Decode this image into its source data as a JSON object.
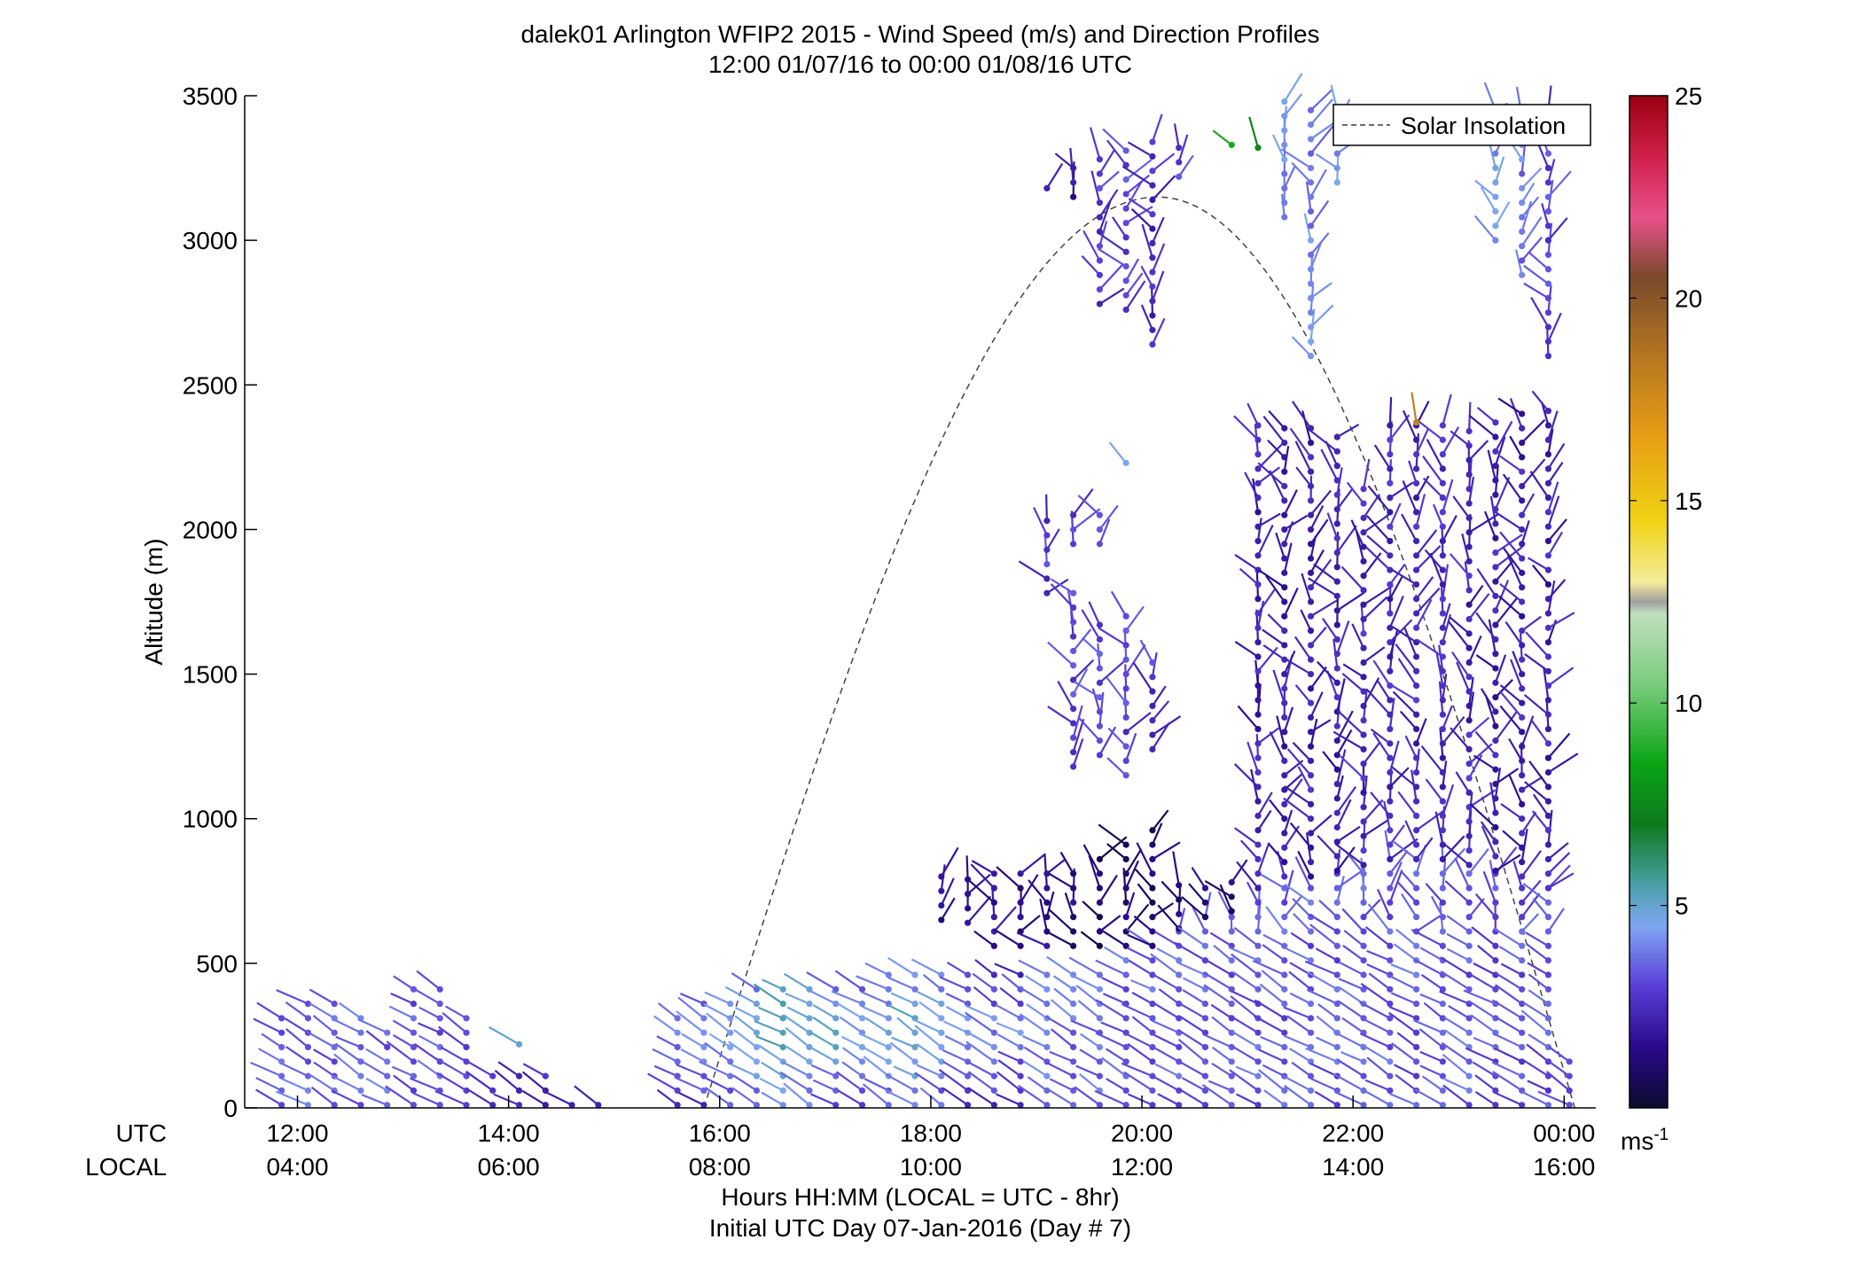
{
  "chart_data": {
    "type": "wind-barb-profile",
    "title": "dalek01 Arlington WFIP2 2015 - Wind Speed (m/s) and Direction Profiles",
    "subtitle": "12:00 01/07/16 to 00:00 01/08/16  UTC",
    "ylabel": "Altitude (m)",
    "xlabel": "Hours HH:MM  (LOCAL = UTC - 8hr)",
    "xlabel2": "Initial UTC Day 07-Jan-2016 (Day # 7)",
    "xlim_hours_utc": [
      11.5,
      24.3
    ],
    "ylim": [
      0,
      3500
    ],
    "y_ticks": [
      0,
      500,
      1000,
      1500,
      2000,
      2500,
      3000,
      3500
    ],
    "utc_row_label": "UTC",
    "local_row_label": "LOCAL",
    "x_ticks": [
      {
        "hour": 12,
        "utc": "12:00",
        "local": "04:00"
      },
      {
        "hour": 14,
        "utc": "14:00",
        "local": "06:00"
      },
      {
        "hour": 16,
        "utc": "16:00",
        "local": "08:00"
      },
      {
        "hour": 18,
        "utc": "18:00",
        "local": "10:00"
      },
      {
        "hour": 20,
        "utc": "20:00",
        "local": "12:00"
      },
      {
        "hour": 22,
        "utc": "22:00",
        "local": "14:00"
      },
      {
        "hour": 24,
        "utc": "00:00",
        "local": "16:00"
      }
    ],
    "colorbar": {
      "range": [
        0,
        25
      ],
      "ticks": [
        5,
        10,
        15,
        20,
        25
      ],
      "unit_label": "ms",
      "unit_exponent": "-1",
      "stops": [
        {
          "v": 0,
          "color": "#0b0b2e"
        },
        {
          "v": 1.5,
          "color": "#2a0a8a"
        },
        {
          "v": 3,
          "color": "#5a3dd8"
        },
        {
          "v": 4.5,
          "color": "#7fa6f2"
        },
        {
          "v": 5.5,
          "color": "#4aa0a8"
        },
        {
          "v": 7,
          "color": "#0e7a1e"
        },
        {
          "v": 8.5,
          "color": "#0aa514"
        },
        {
          "v": 10.5,
          "color": "#7ccc7e"
        },
        {
          "v": 12.2,
          "color": "#bfe0bd"
        },
        {
          "v": 12.5,
          "color": "#a0a0a0"
        },
        {
          "v": 13,
          "color": "#f4ec9a"
        },
        {
          "v": 14.5,
          "color": "#f0d214"
        },
        {
          "v": 16.5,
          "color": "#e8a014"
        },
        {
          "v": 18.5,
          "color": "#b87820"
        },
        {
          "v": 20.5,
          "color": "#7a4a2a"
        },
        {
          "v": 22,
          "color": "#e8508a"
        },
        {
          "v": 23.5,
          "color": "#d0204a"
        },
        {
          "v": 25,
          "color": "#9a0012"
        }
      ]
    },
    "legend": {
      "label": "Solar Insolation",
      "position": "top-right",
      "style": "dashed"
    },
    "solar_insolation_curve": {
      "start_hour": 15.85,
      "peak_hour": 20.15,
      "end_hour": 24.1,
      "peak_altitude": 3150
    },
    "profiles": [
      {
        "t": 11.85,
        "ranges": [
          [
            10,
            330,
            3.5
          ]
        ]
      },
      {
        "t": 12.1,
        "ranges": [
          [
            10,
            380,
            3.5
          ]
        ]
      },
      {
        "t": 12.35,
        "ranges": [
          [
            10,
            380,
            3.5
          ]
        ]
      },
      {
        "t": 12.6,
        "ranges": [
          [
            10,
            340,
            3.5
          ]
        ]
      },
      {
        "t": 12.85,
        "ranges": [
          [
            10,
            290,
            3.5
          ]
        ]
      },
      {
        "t": 13.1,
        "ranges": [
          [
            10,
            410,
            3.5
          ]
        ]
      },
      {
        "t": 13.35,
        "ranges": [
          [
            10,
            420,
            3.3
          ]
        ]
      },
      {
        "t": 13.6,
        "ranges": [
          [
            10,
            330,
            2.8
          ]
        ]
      },
      {
        "t": 13.85,
        "ranges": [
          [
            10,
            110,
            2.6
          ]
        ]
      },
      {
        "t": 14.1,
        "ranges": [
          [
            10,
            140,
            2.6
          ]
        ]
      },
      {
        "t": 14.35,
        "ranges": [
          [
            10,
            120,
            2.6
          ]
        ]
      },
      {
        "t": 14.6,
        "ranges": [
          [
            10,
            30,
            2.4
          ]
        ]
      },
      {
        "t": 14.85,
        "ranges": [
          [
            10,
            30,
            2.4
          ]
        ]
      },
      {
        "t": 15.6,
        "ranges": [
          [
            10,
            330,
            4.2
          ]
        ]
      },
      {
        "t": 15.85,
        "ranges": [
          [
            10,
            390,
            4.4
          ]
        ]
      },
      {
        "t": 16.1,
        "ranges": [
          [
            10,
            400,
            4.6
          ]
        ]
      },
      {
        "t": 16.35,
        "ranges": [
          [
            10,
            410,
            5.2
          ]
        ]
      },
      {
        "t": 16.6,
        "ranges": [
          [
            10,
            410,
            5.8
          ]
        ]
      },
      {
        "t": 16.85,
        "ranges": [
          [
            10,
            410,
            5.5
          ]
        ]
      },
      {
        "t": 17.1,
        "ranges": [
          [
            10,
            420,
            5.0
          ]
        ]
      },
      {
        "t": 17.35,
        "ranges": [
          [
            10,
            430,
            4.8
          ]
        ]
      },
      {
        "t": 17.6,
        "ranges": [
          [
            10,
            460,
            4.8
          ]
        ]
      },
      {
        "t": 17.85,
        "ranges": [
          [
            10,
            470,
            5.5
          ]
        ]
      },
      {
        "t": 18.1,
        "ranges": [
          [
            10,
            480,
            5.0
          ],
          [
            650,
            800,
            1.5
          ]
        ]
      },
      {
        "t": 18.35,
        "ranges": [
          [
            10,
            490,
            4.5
          ],
          [
            640,
            800,
            2.0
          ]
        ]
      },
      {
        "t": 18.6,
        "ranges": [
          [
            10,
            500,
            4.2
          ],
          [
            560,
            820,
            1.8
          ]
        ]
      },
      {
        "t": 18.85,
        "ranges": [
          [
            10,
            500,
            4.0
          ],
          [
            560,
            810,
            1.4
          ]
        ]
      },
      {
        "t": 19.1,
        "ranges": [
          [
            10,
            500,
            3.8
          ],
          [
            560,
            820,
            1.4
          ],
          [
            1780,
            2060,
            2.8
          ],
          [
            3180,
            3200,
            2.5
          ]
        ]
      },
      {
        "t": 19.35,
        "ranges": [
          [
            10,
            500,
            3.6
          ],
          [
            560,
            820,
            1.2
          ],
          [
            1180,
            1820,
            3.0
          ],
          [
            1950,
            2080,
            2.8
          ],
          [
            3150,
            3280,
            2.0
          ]
        ]
      },
      {
        "t": 19.6,
        "ranges": [
          [
            10,
            500,
            3.6
          ],
          [
            560,
            880,
            1.0
          ],
          [
            1220,
            1700,
            3.2
          ],
          [
            1950,
            2060,
            2.8
          ],
          [
            2780,
            3320,
            2.8
          ]
        ]
      },
      {
        "t": 19.85,
        "ranges": [
          [
            10,
            520,
            3.5
          ],
          [
            560,
            940,
            1.0
          ],
          [
            1150,
            1740,
            3.0
          ],
          [
            2760,
            3340,
            3.0
          ]
        ]
      },
      {
        "t": 20.1,
        "ranges": [
          [
            10,
            560,
            3.4
          ],
          [
            560,
            960,
            1.0
          ],
          [
            1240,
            1560,
            2.8
          ],
          [
            2640,
            3380,
            2.5
          ]
        ]
      },
      {
        "t": 20.35,
        "ranges": [
          [
            10,
            620,
            3.4
          ],
          [
            620,
            780,
            1.2
          ],
          [
            3220,
            3340,
            2.8
          ]
        ]
      },
      {
        "t": 20.6,
        "ranges": [
          [
            10,
            660,
            3.4
          ],
          [
            660,
            800,
            1.2
          ]
        ]
      },
      {
        "t": 20.85,
        "ranges": [
          [
            10,
            700,
            3.4
          ],
          [
            680,
            800,
            1.2
          ],
          [
            3330,
            3340,
            8.5
          ]
        ]
      },
      {
        "t": 21.1,
        "ranges": [
          [
            10,
            740,
            3.4
          ],
          [
            760,
            2360,
            2.2
          ],
          [
            3320,
            3340,
            7.5
          ]
        ]
      },
      {
        "t": 21.35,
        "ranges": [
          [
            10,
            780,
            3.4
          ],
          [
            800,
            2360,
            2.0
          ],
          [
            3080,
            3480,
            4.2
          ]
        ]
      },
      {
        "t": 21.6,
        "ranges": [
          [
            10,
            800,
            3.4
          ],
          [
            800,
            2360,
            2.2
          ],
          [
            2600,
            3460,
            4.0
          ]
        ]
      },
      {
        "t": 21.85,
        "ranges": [
          [
            10,
            820,
            3.4
          ],
          [
            820,
            2360,
            2.2
          ],
          [
            3200,
            3460,
            4.4
          ]
        ]
      },
      {
        "t": 22.1,
        "ranges": [
          [
            10,
            840,
            3.4
          ],
          [
            840,
            2160,
            2.4
          ]
        ]
      },
      {
        "t": 22.35,
        "ranges": [
          [
            10,
            860,
            3.4
          ],
          [
            860,
            2360,
            2.4
          ]
        ]
      },
      {
        "t": 22.6,
        "ranges": [
          [
            10,
            860,
            3.4
          ],
          [
            860,
            2360,
            2.4
          ]
        ]
      },
      {
        "t": 22.85,
        "ranges": [
          [
            10,
            860,
            3.4
          ],
          [
            860,
            2360,
            2.4
          ]
        ]
      },
      {
        "t": 23.1,
        "ranges": [
          [
            10,
            840,
            3.4
          ],
          [
            840,
            2380,
            2.4
          ]
        ]
      },
      {
        "t": 23.35,
        "ranges": [
          [
            10,
            820,
            3.2
          ],
          [
            820,
            2380,
            2.2
          ],
          [
            3000,
            3460,
            4.4
          ]
        ]
      },
      {
        "t": 23.6,
        "ranges": [
          [
            10,
            800,
            3.2
          ],
          [
            800,
            2400,
            2.2
          ],
          [
            2880,
            3460,
            3.8
          ]
        ]
      },
      {
        "t": 23.85,
        "ranges": [
          [
            10,
            760,
            3.2
          ],
          [
            760,
            2420,
            2.2
          ],
          [
            2600,
            3460,
            3.0
          ]
        ]
      },
      {
        "t": 24.05,
        "ranges": [
          [
            10,
            160,
            3.0
          ]
        ]
      }
    ],
    "isolated_barbs": [
      {
        "t": 14.1,
        "alt": 220,
        "speed": 4.4
      },
      {
        "t": 19.85,
        "alt": 2230,
        "speed": 4.0
      },
      {
        "t": 22.6,
        "alt": 2370,
        "speed": 18.5
      }
    ]
  }
}
